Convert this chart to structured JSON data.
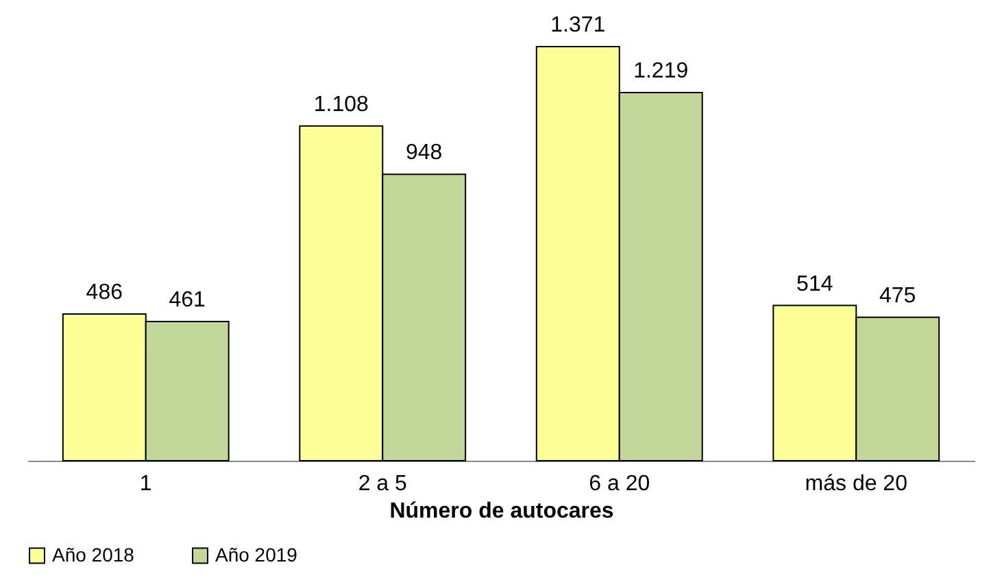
{
  "chart_data": {
    "type": "bar",
    "xlabel": "Número de autocares",
    "categories": [
      "1",
      "2 a 5",
      "6 a 20",
      "más de 20"
    ],
    "series": [
      {
        "name": "Año 2018",
        "color": "#ffff99",
        "values": [
          486,
          1108,
          1371,
          514
        ],
        "value_labels": [
          "486",
          "1.108",
          "1.371",
          "514"
        ]
      },
      {
        "name": "Año 2019",
        "color": "#c4d79b",
        "values": [
          461,
          948,
          1219,
          475
        ],
        "value_labels": [
          "461",
          "948",
          "1.219",
          "475"
        ]
      }
    ],
    "legend": "bottom",
    "grid": false
  }
}
